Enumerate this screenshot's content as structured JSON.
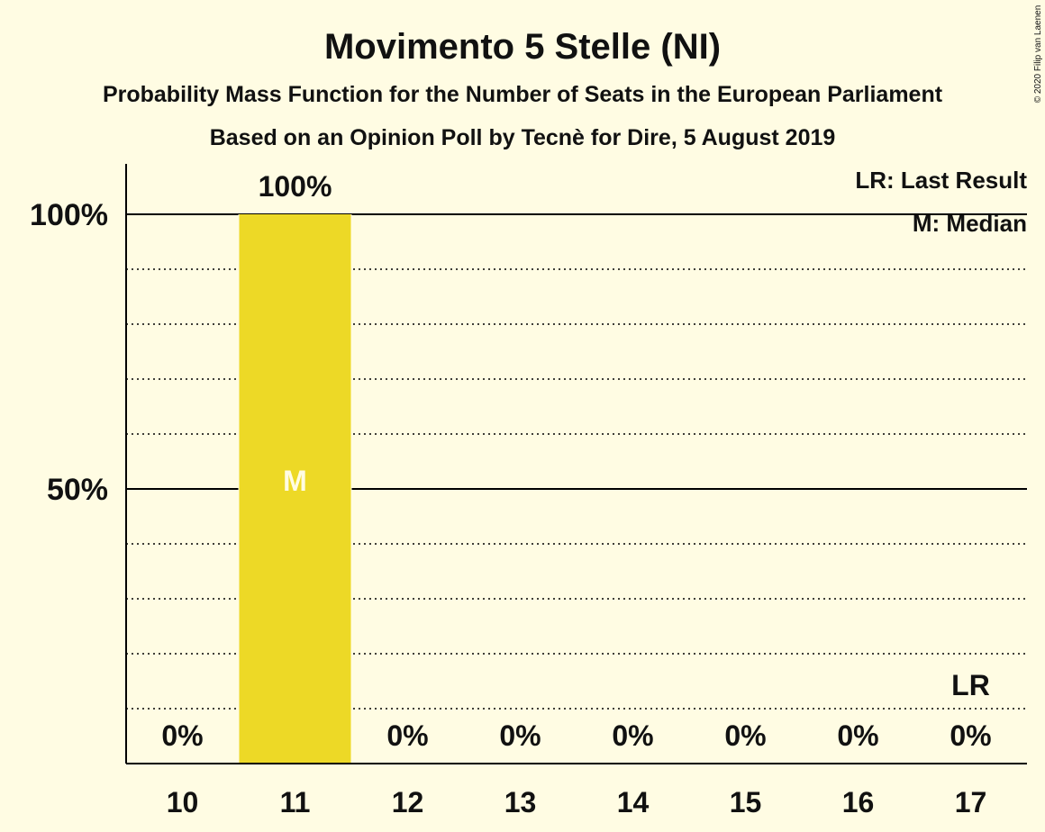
{
  "chart_data": {
    "type": "bar",
    "title": "Movimento 5 Stelle (NI)",
    "subtitle": "Probability Mass Function for the Number of Seats in the European Parliament",
    "subtitle2": "Based on an Opinion Poll by Tecnè for Dire, 5 August 2019",
    "categories": [
      "10",
      "11",
      "12",
      "13",
      "14",
      "15",
      "16",
      "17"
    ],
    "values": [
      0,
      100,
      0,
      0,
      0,
      0,
      0,
      0
    ],
    "data_labels": [
      "0%",
      "100%",
      "0%",
      "0%",
      "0%",
      "0%",
      "0%",
      "0%"
    ],
    "ylim": [
      0,
      100
    ],
    "yticks": [
      {
        "value": 50,
        "label": "50%"
      },
      {
        "value": 100,
        "label": "100%"
      }
    ],
    "minor_gridlines": [
      10,
      20,
      30,
      40,
      60,
      70,
      80,
      90
    ],
    "median_category": "11",
    "median_marker": "M",
    "last_result_category": "17",
    "last_result_marker": "LR",
    "legend": [
      "LR: Last Result",
      "M: Median"
    ],
    "legend_position": "top-right",
    "copyright": "© 2020 Filip van Laenen",
    "colors": {
      "bar": "#EDD926",
      "background": "#FFFCE3",
      "axis": "#000000",
      "text": "#111111"
    }
  }
}
